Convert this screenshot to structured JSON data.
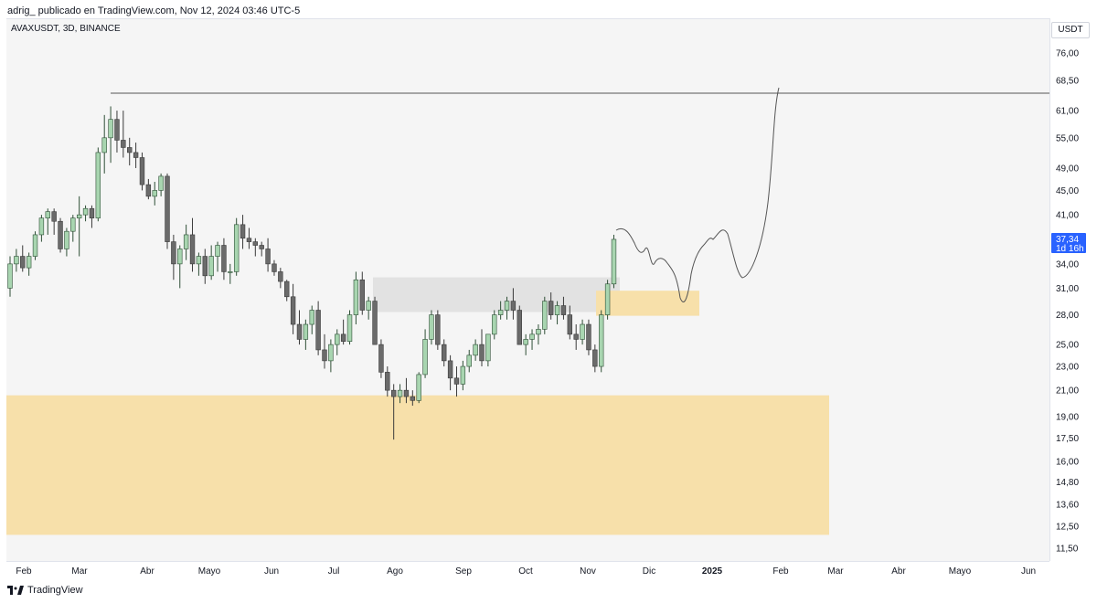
{
  "header": {
    "attribution": "adrig_ publicado en TradingView.com, Nov 12, 2024 03:46 UTC-5"
  },
  "symbol_line": "AVAXUSDT, 3D, BINANCE",
  "currency": "USDT",
  "last_price": {
    "value": "37,34",
    "countdown": "1d 16h"
  },
  "footer": {
    "brand": "TradingView"
  },
  "colors": {
    "up": "#a8d5b0",
    "up_border": "#2e4f36",
    "down": "#6b6b6b",
    "down_border": "#3a3a3a",
    "zone_yellow": "#f7e0aa",
    "zone_gray": "#e2e2e2",
    "price_badge": "#2962ff"
  },
  "chart_data": {
    "type": "candlestick",
    "price_scale": "log",
    "y_ticks": [
      "76,00",
      "68,50",
      "61,00",
      "55,00",
      "49,00",
      "45,00",
      "41,00",
      "34,00",
      "31,00",
      "28,00",
      "25,00",
      "23,00",
      "21,00",
      "19,00",
      "17,50",
      "16,00",
      "14,80",
      "13,60",
      "12,50",
      "11,50"
    ],
    "x_ticks": [
      "Feb",
      "Mar",
      "Abr",
      "Mayo",
      "Jun",
      "Jul",
      "Ago",
      "Sep",
      "Oct",
      "Nov",
      "Dic",
      "2025",
      "Feb",
      "Mar",
      "Abr",
      "Mayo",
      "Jun"
    ]
  }
}
